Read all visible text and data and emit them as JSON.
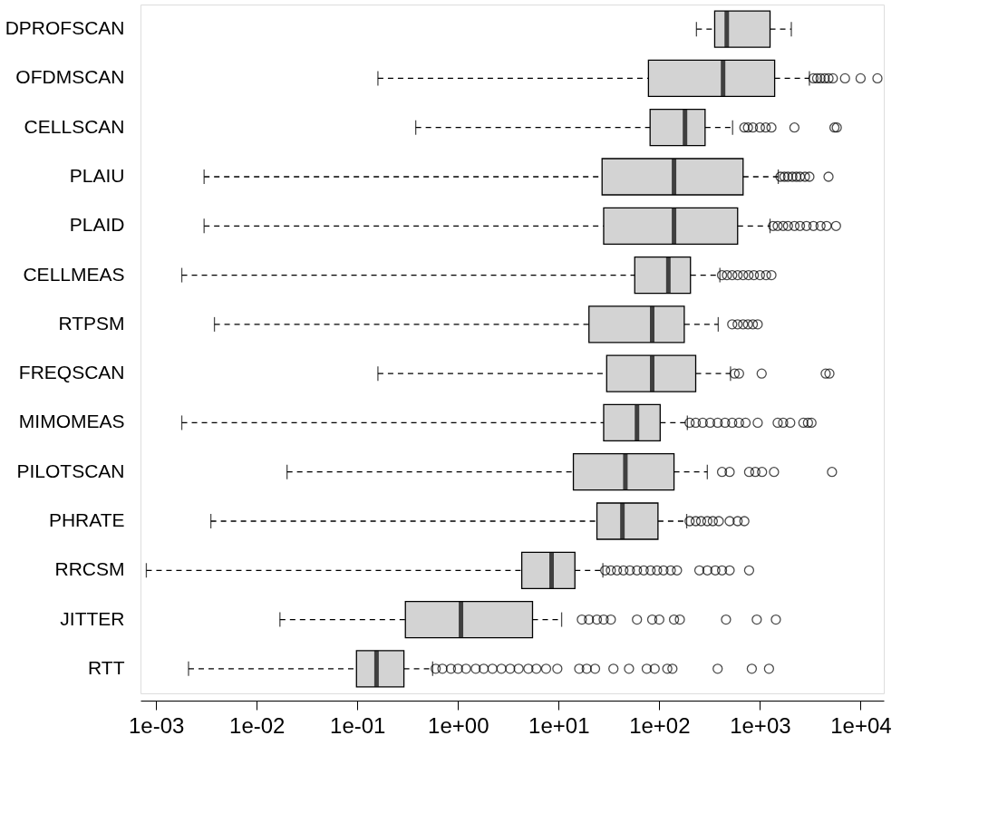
{
  "chart_data": {
    "type": "box",
    "orientation": "horizontal",
    "log": "x",
    "grid": false,
    "categories": [
      "DPROFSCAN",
      "OFDMSCAN",
      "CELLSCAN",
      "PLAIU",
      "PLAID",
      "CELLMEAS",
      "RTPSM",
      "FREQSCAN",
      "MIMOMEAS",
      "PILOTSCAN",
      "PHRATE",
      "RRCSM",
      "JITTER",
      "RTT"
    ],
    "xlim": [
      0.0007,
      17000
    ],
    "xticks": [
      {
        "value": 0.001,
        "label": "1e-03"
      },
      {
        "value": 0.01,
        "label": "1e-02"
      },
      {
        "value": 0.1,
        "label": "1e-01"
      },
      {
        "value": 1,
        "label": "1e+00"
      },
      {
        "value": 10,
        "label": "1e+01"
      },
      {
        "value": 100,
        "label": "1e+02"
      },
      {
        "value": 1000,
        "label": "1e+03"
      },
      {
        "value": 10000,
        "label": "1e+04"
      }
    ],
    "series": [
      {
        "color": "#d3d3d3",
        "boxes": [
          {
            "low": 234,
            "q1": 355,
            "median": 468,
            "q3": 1260,
            "high": 2050
          },
          {
            "low": 0.16,
            "q1": 78,
            "median": 430,
            "q3": 1400,
            "high": 3100,
            "outliers": [
              3400,
              3700,
              4000,
              4400,
              4800,
              5300,
              7000,
              10000,
              14700
            ]
          },
          {
            "low": 0.38,
            "q1": 81,
            "median": 180,
            "q3": 285,
            "high": 535,
            "outliers": [
              700,
              760,
              850,
              1000,
              1140,
              1300,
              2200,
              5500,
              5800
            ]
          },
          {
            "low": 0.003,
            "q1": 27,
            "median": 140,
            "q3": 680,
            "high": 1520,
            "outliers": [
              1600,
              1750,
              1900,
              2100,
              2300,
              2500,
              2800,
              3100,
              4800
            ]
          },
          {
            "low": 0.003,
            "q1": 28,
            "median": 140,
            "q3": 600,
            "high": 1260,
            "outliers": [
              1350,
              1500,
              1700,
              1900,
              2200,
              2500,
              2900,
              3400,
              4000,
              4600,
              5700
            ]
          },
          {
            "low": 0.0018,
            "q1": 57,
            "median": 123,
            "q3": 204,
            "high": 400,
            "outliers": [
              420,
              470,
              530,
              600,
              680,
              770,
              870,
              1000,
              1150,
              1300
            ]
          },
          {
            "low": 0.0038,
            "q1": 20,
            "median": 85,
            "q3": 177,
            "high": 385,
            "outliers": [
              530,
              600,
              680,
              760,
              850,
              950
            ]
          },
          {
            "low": 0.16,
            "q1": 30,
            "median": 85,
            "q3": 230,
            "high": 510,
            "outliers": [
              560,
              620,
              1040,
              4500,
              4900
            ]
          },
          {
            "low": 0.0018,
            "q1": 28,
            "median": 60,
            "q3": 102,
            "high": 190,
            "outliers": [
              200,
              230,
              270,
              320,
              380,
              450,
              530,
              620,
              720,
              950,
              1500,
              1700,
              2000,
              2700,
              3000,
              3250
            ]
          },
          {
            "low": 0.02,
            "q1": 14,
            "median": 46,
            "q3": 140,
            "high": 300,
            "outliers": [
              420,
              500,
              780,
              900,
              1050,
              1380,
              5200
            ]
          },
          {
            "low": 0.0035,
            "q1": 24,
            "median": 43,
            "q3": 97,
            "high": 187,
            "outliers": [
              200,
              230,
              260,
              300,
              340,
              390,
              500,
              600,
              700
            ]
          },
          {
            "low": 0.0008,
            "q1": 4.3,
            "median": 8.5,
            "q3": 14.5,
            "high": 27.5,
            "outliers": [
              29,
              33,
              38,
              44,
              51,
              60,
              70,
              82,
              95,
              110,
              130,
              150,
              250,
              300,
              360,
              420,
              500,
              780
            ]
          },
          {
            "low": 0.017,
            "q1": 0.3,
            "median": 1.07,
            "q3": 5.5,
            "high": 10.7,
            "outliers": [
              17,
              20,
              24,
              28,
              33,
              60,
              85,
              100,
              140,
              160,
              460,
              930,
              1440
            ]
          },
          {
            "low": 0.0021,
            "q1": 0.098,
            "median": 0.155,
            "q3": 0.29,
            "high": 0.56,
            "outliers": [
              0.6,
              0.7,
              0.85,
              1,
              1.2,
              1.5,
              1.8,
              2.2,
              2.7,
              3.3,
              4,
              5,
              6,
              7.5,
              9.7,
              16,
              19,
              23,
              35,
              50,
              75,
              90,
              120,
              135,
              380,
              830,
              1230
            ]
          }
        ]
      }
    ]
  }
}
